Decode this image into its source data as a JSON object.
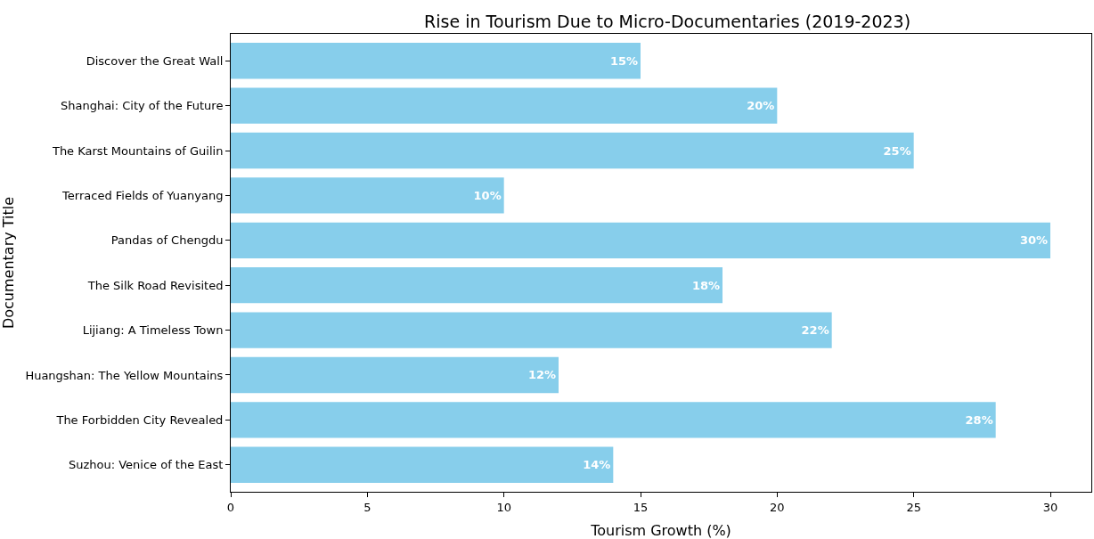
{
  "chart_data": {
    "type": "bar",
    "orientation": "horizontal",
    "title": "Rise in Tourism Due to Micro-Documentaries (2019-2023)",
    "xlabel": "Tourism Growth (%)",
    "ylabel": "Documentary Title",
    "categories": [
      "Discover the Great Wall",
      "Shanghai: City of the Future",
      "The Karst Mountains of Guilin",
      "Terraced Fields of Yuanyang",
      "Pandas of Chengdu",
      "The Silk Road Revisited",
      "Lijiang: A Timeless Town",
      "Huangshan: The Yellow Mountains",
      "The Forbidden City Revealed",
      "Suzhou: Venice of the East"
    ],
    "values": [
      15,
      20,
      25,
      10,
      30,
      18,
      22,
      12,
      28,
      14
    ],
    "value_labels": [
      "15%",
      "20%",
      "25%",
      "10%",
      "30%",
      "18%",
      "22%",
      "12%",
      "28%",
      "14%"
    ],
    "color": "#87ceeb",
    "xlim": [
      0,
      31.5
    ],
    "xticks": [
      0,
      5,
      10,
      15,
      20,
      25,
      30
    ],
    "grid": false,
    "legend": false
  }
}
